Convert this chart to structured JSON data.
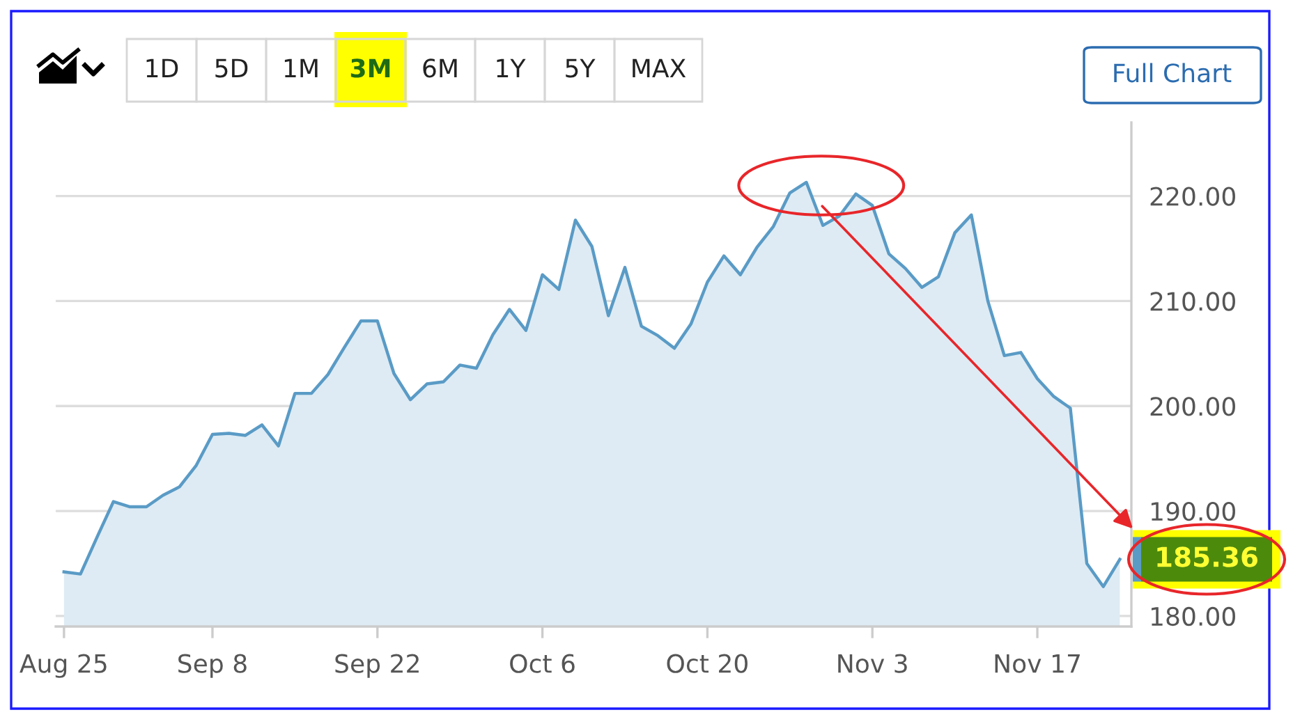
{
  "chart_data": {
    "type": "area",
    "categories": [
      "Aug 25",
      null,
      null,
      null,
      null,
      null,
      null,
      null,
      null,
      "Sep 8",
      null,
      null,
      null,
      null,
      null,
      null,
      null,
      null,
      null,
      "Sep 22",
      null,
      null,
      null,
      null,
      null,
      null,
      null,
      null,
      null,
      "Oct 6",
      null,
      null,
      null,
      null,
      null,
      null,
      null,
      null,
      null,
      "Oct 20",
      null,
      null,
      null,
      null,
      null,
      null,
      null,
      null,
      null,
      "Nov 3",
      null,
      null,
      null,
      null,
      null,
      null,
      null,
      null,
      null,
      "Nov 17",
      null,
      null,
      null,
      null,
      null
    ],
    "values": [
      184.2,
      184.0,
      187.5,
      190.9,
      190.4,
      190.4,
      191.5,
      192.3,
      194.3,
      197.3,
      197.4,
      197.2,
      198.2,
      196.2,
      201.2,
      201.2,
      203.0,
      205.6,
      208.1,
      208.1,
      203.1,
      200.6,
      202.1,
      202.3,
      203.9,
      203.6,
      206.8,
      209.2,
      207.2,
      212.5,
      211.1,
      217.7,
      215.2,
      208.6,
      213.2,
      207.6,
      206.7,
      205.5,
      207.8,
      211.8,
      214.3,
      212.5,
      215.1,
      217.1,
      220.3,
      221.3,
      217.2,
      218.1,
      220.2,
      219.1,
      214.5,
      213.1,
      211.3,
      212.3,
      216.5,
      218.2,
      210.0,
      204.8,
      205.1,
      202.6,
      200.9,
      199.8,
      185.0,
      182.8,
      185.4
    ],
    "color": "#5a9bc6",
    "ylim": [
      179,
      227
    ],
    "yticks": [
      {
        "value": 180,
        "label": "180.00"
      },
      {
        "value": 190,
        "label": "190.00"
      },
      {
        "value": 200,
        "label": "200.00"
      },
      {
        "value": 210,
        "label": "210.00"
      },
      {
        "value": 220,
        "label": "220.00"
      }
    ],
    "grid": "y",
    "annotations": [
      "1D",
      "5D",
      "1M",
      "3M",
      "6M",
      "1Y",
      "5Y",
      "MAX",
      "Full Chart",
      "185.36"
    ]
  }
}
